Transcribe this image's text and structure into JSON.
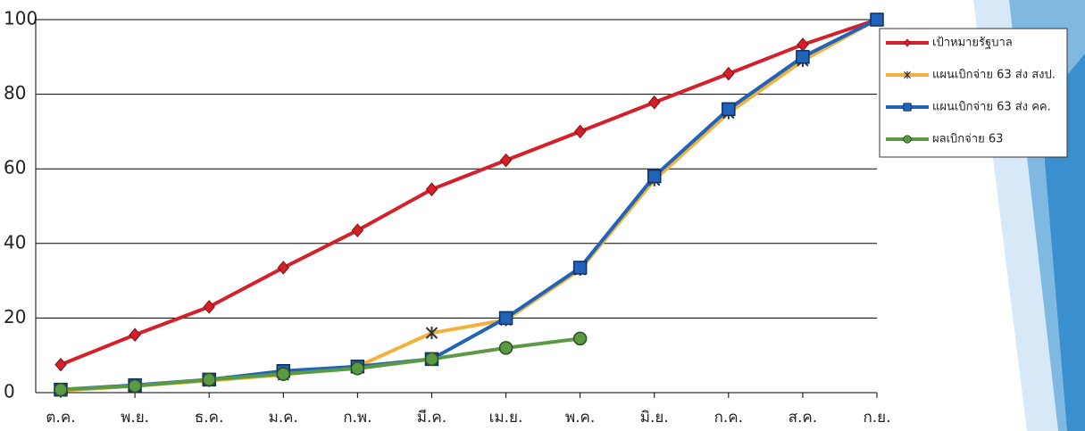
{
  "chart_data": {
    "type": "line",
    "categories": [
      "ต.ค.",
      "พ.ย.",
      "ธ.ค.",
      "ม.ค.",
      "ก.พ.",
      "มี.ค.",
      "เม.ย.",
      "พ.ค.",
      "มิ.ย.",
      "ก.ค.",
      "ส.ค.",
      "ก.ย."
    ],
    "series": [
      {
        "name": "เป้าหมายรัฐบาล",
        "color": "#d4202a",
        "marker": "diamond",
        "values": [
          7.5,
          15.5,
          23,
          33.5,
          43.5,
          54.5,
          62.3,
          70,
          77.8,
          85.5,
          93.3,
          100
        ]
      },
      {
        "name": "แผนเบิกจ่าย 63 ส่ง สงป.",
        "color": "#f3b13a",
        "marker": "star",
        "values": [
          0.5,
          1.8,
          3.2,
          4.8,
          7,
          16,
          19.5,
          33,
          57,
          75,
          89,
          100
        ]
      },
      {
        "name": "แผนเบิกจ่าย 63 ส่ง คค.",
        "color": "#2063b8",
        "marker": "square",
        "values": [
          0.8,
          2,
          3.5,
          5.8,
          7,
          9,
          20,
          33.5,
          58,
          76,
          90,
          100
        ]
      },
      {
        "name": "ผลเบิกจ่าย 63",
        "color": "#5a9a45",
        "marker": "circle",
        "values": [
          0.8,
          1.8,
          3.5,
          5,
          6.5,
          9,
          12,
          14.5,
          null,
          null,
          null,
          null
        ]
      }
    ],
    "ylim": [
      0,
      100
    ],
    "yticks": [
      0,
      20,
      40,
      60,
      80,
      100
    ],
    "grid": true
  }
}
